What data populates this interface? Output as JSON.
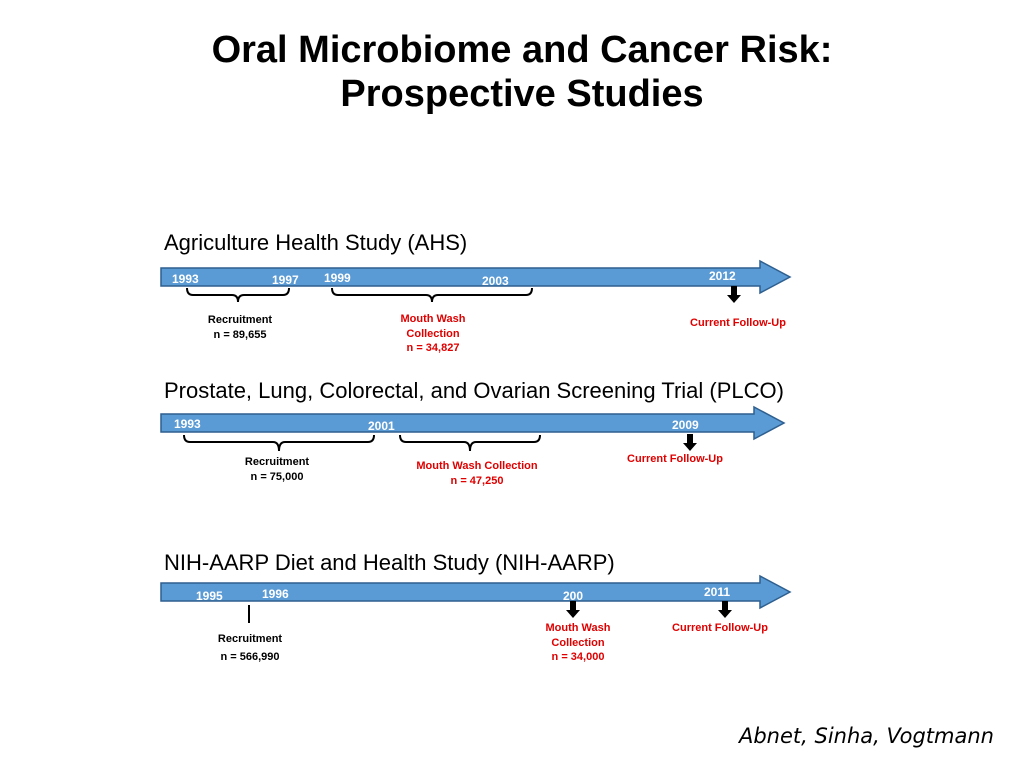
{
  "page": {
    "title_line1": "Oral Microbiome and Cancer Risk:",
    "title_line2": "Prospective Studies",
    "credit": "Abnet, Sinha, Vogtmann",
    "colors": {
      "bar": "#5b9bd5",
      "bar_border": "#2e5f8f",
      "accent_red": "#e00000"
    }
  },
  "studies": [
    {
      "title": "Agriculture Health Study (AHS)",
      "years": [
        "1993",
        "1997",
        "1999",
        "2003",
        "2012"
      ],
      "recruitment": {
        "label": "Recruitment",
        "n": "n = 89,655"
      },
      "mouthwash": {
        "line1": "Mouth Wash",
        "line2": "Collection",
        "n": "n = 34,827"
      },
      "followup": "Current Follow-Up"
    },
    {
      "title": "Prostate, Lung, Colorectal, and Ovarian Screening Trial (PLCO)",
      "years": [
        "1993",
        "2001",
        "2009"
      ],
      "recruitment": {
        "label": "Recruitment",
        "n": "n = 75,000"
      },
      "mouthwash": {
        "line1": "Mouth Wash Collection",
        "n": "n = 47,250"
      },
      "followup": "Current Follow-Up"
    },
    {
      "title": "NIH-AARP Diet and Health Study (NIH-AARP)",
      "years": [
        "1995",
        "1996",
        "200",
        "2011"
      ],
      "recruitment": {
        "label": "Recruitment",
        "n": "n = 566,990"
      },
      "mouthwash": {
        "line1": "Mouth Wash",
        "line2": "Collection",
        "n": "n = 34,000"
      },
      "followup": "Current Follow-Up"
    }
  ]
}
